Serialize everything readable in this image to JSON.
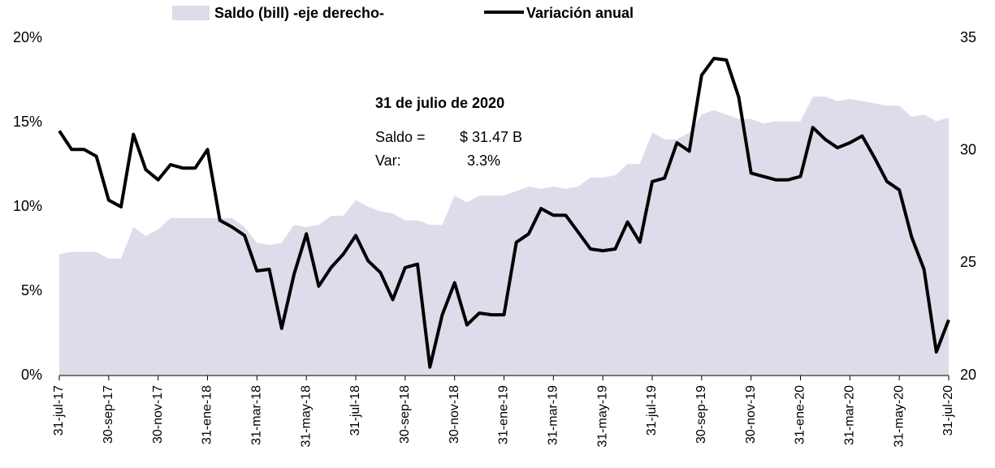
{
  "chart_data": {
    "type": "line",
    "categories": [
      "31-jul-17",
      null,
      null,
      null,
      "30-sep-17",
      null,
      null,
      null,
      "30-nov-17",
      null,
      null,
      null,
      "31-ene-18",
      null,
      null,
      null,
      "31-mar-18",
      null,
      null,
      null,
      "31-may-18",
      null,
      null,
      null,
      "31-jul-18",
      null,
      null,
      null,
      "30-sep-18",
      null,
      null,
      null,
      "30-nov-18",
      null,
      null,
      null,
      "31-ene-19",
      null,
      null,
      null,
      "31-mar-19",
      null,
      null,
      null,
      "31-may-19",
      null,
      null,
      null,
      "31-jul-19",
      null,
      null,
      null,
      "30-sep-19",
      null,
      null,
      null,
      "30-nov-19",
      null,
      null,
      null,
      "31-ene-20",
      null,
      null,
      null,
      "31-mar-20",
      null,
      null,
      null,
      "31-may-20",
      null,
      null,
      null,
      "31-jul-20"
    ],
    "series": [
      {
        "name": "Variación anual",
        "color": "#000000",
        "values": [
          14.5,
          13.4,
          13.4,
          13.0,
          10.4,
          10.0,
          14.3,
          12.2,
          11.6,
          12.5,
          12.3,
          12.3,
          13.4,
          9.2,
          8.8,
          8.3,
          6.2,
          6.3,
          2.8,
          6.0,
          8.4,
          5.3,
          6.4,
          7.2,
          8.3,
          6.8,
          6.1,
          4.5,
          6.4,
          6.6,
          0.5,
          3.6,
          5.5,
          3.0,
          3.7,
          3.6,
          3.6,
          7.9,
          8.4,
          9.9,
          9.5,
          9.5,
          8.5,
          7.5,
          7.4,
          7.5,
          9.1,
          7.9,
          11.5,
          11.7,
          13.8,
          13.3,
          17.8,
          18.8,
          18.7,
          16.5,
          12.0,
          11.8,
          11.6,
          11.6,
          11.8,
          14.7,
          14.0,
          13.5,
          13.8,
          14.2,
          12.9,
          11.5,
          11.0,
          8.2,
          6.3,
          1.4,
          3.3
        ]
      },
      {
        "name": "Saldo (bill) -eje derecho-",
        "color": "#dedbea",
        "axis": "y2",
        "area": true,
        "values": [
          25.4,
          25.5,
          25.5,
          25.5,
          25.2,
          25.2,
          26.6,
          26.2,
          26.5,
          27.0,
          27.0,
          27.0,
          27.0,
          27.0,
          27.0,
          26.6,
          25.9,
          25.8,
          25.9,
          26.7,
          26.6,
          26.7,
          27.1,
          27.1,
          27.8,
          27.5,
          27.3,
          27.2,
          26.9,
          26.9,
          26.7,
          26.7,
          28.0,
          27.7,
          28.0,
          28.0,
          28.0,
          28.2,
          28.4,
          28.3,
          28.4,
          28.3,
          28.4,
          28.8,
          28.8,
          28.9,
          29.4,
          29.4,
          30.8,
          30.5,
          30.5,
          30.8,
          31.6,
          31.8,
          31.6,
          31.4,
          31.4,
          31.2,
          31.3,
          31.3,
          31.3,
          32.4,
          32.4,
          32.2,
          32.3,
          32.2,
          32.1,
          32.0,
          32.0,
          31.5,
          31.6,
          31.3,
          31.47
        ]
      }
    ],
    "ylim": [
      0,
      20
    ],
    "yticks": [
      {
        "value": 0,
        "label": "0%"
      },
      {
        "value": 5,
        "label": "5%"
      },
      {
        "value": 10,
        "label": "10%"
      },
      {
        "value": 15,
        "label": "15%"
      },
      {
        "value": 20,
        "label": "20%"
      }
    ],
    "y2lim": [
      20,
      35
    ],
    "y2ticks": [
      20,
      25,
      30,
      35
    ],
    "annotation": {
      "title": "31 de julio de 2020",
      "saldo_label": "Saldo =",
      "saldo_value": "$ 31.47 B",
      "var_label": "Var:",
      "var_value": "3.3%"
    }
  }
}
